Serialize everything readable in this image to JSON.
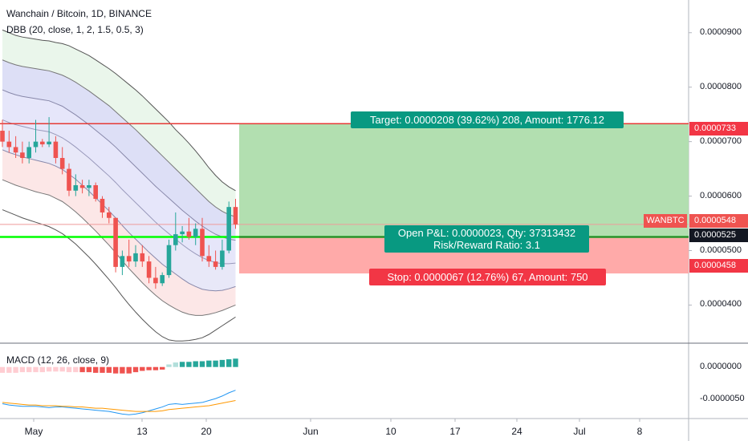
{
  "header": {
    "title": "Wanchain / Bitcoin, 1D, BINANCE",
    "indicator": "DBB (20, close, 1, 2, 1.5, 0.5, 3)"
  },
  "macd_legend": "MACD (12, 26, close, 9)",
  "position": {
    "target_label": "Target: 0.0000208 (39.62%) 208, Amount: 1776.12",
    "pnl_label": "Open P&L: 0.0000023, Qty: 37313432",
    "rr_label": "Risk/Reward Ratio: 3.1",
    "stop_label": "Stop: 0.0000067 (12.76%) 67, Amount: 750"
  },
  "price_axis": {
    "ticks": [
      "0.0000900",
      "0.0000800",
      "0.0000700",
      "0.0000600",
      "0.0000500",
      "0.0000400"
    ],
    "target_tag": "0.0000733",
    "last_price_tag": "0.0000548",
    "entry_tag": "0.0000525",
    "stop_tag": "0.0000458",
    "symbol_tag": "WANBTC"
  },
  "macd_axis": {
    "ticks": [
      "0.0000000",
      "-0.0000050"
    ]
  },
  "time_axis": {
    "labels": [
      "May",
      "13",
      "20",
      "Jun",
      "10",
      "17",
      "24",
      "Jul",
      "8"
    ]
  },
  "colors": {
    "up": "#26a69a",
    "down": "#ef5350",
    "target_zone": "#b2dfb0",
    "stop_zone": "#ffaaa9",
    "target_box": "#089981",
    "stop_box": "#f23645",
    "entry_line": "#00ff00"
  },
  "chart_data": {
    "type": "candlestick",
    "price_range": [
      3.3e-05,
      9.6e-05
    ],
    "candles": [
      {
        "o": 7.2e-05,
        "h": 7.4e-05,
        "l": 6.9e-05,
        "c": 7e-05
      },
      {
        "o": 7e-05,
        "h": 7.2e-05,
        "l": 6.8e-05,
        "c": 6.9e-05
      },
      {
        "o": 6.9e-05,
        "h": 7.1e-05,
        "l": 6.7e-05,
        "c": 6.8e-05
      },
      {
        "o": 6.8e-05,
        "h": 7e-05,
        "l": 6.6e-05,
        "c": 6.7e-05
      },
      {
        "o": 6.7e-05,
        "h": 7e-05,
        "l": 6.6e-05,
        "c": 6.9e-05
      },
      {
        "o": 6.9e-05,
        "h": 7.4e-05,
        "l": 6.8e-05,
        "c": 7e-05
      },
      {
        "o": 7e-05,
        "h": 7.05e-05,
        "l": 6.9e-05,
        "c": 6.95e-05
      },
      {
        "o": 6.95e-05,
        "h": 7.45e-05,
        "l": 6.9e-05,
        "c": 7e-05
      },
      {
        "o": 7e-05,
        "h": 7.1e-05,
        "l": 6.6e-05,
        "c": 6.7e-05
      },
      {
        "o": 6.7e-05,
        "h": 6.9e-05,
        "l": 6.4e-05,
        "c": 6.5e-05
      },
      {
        "o": 6.5e-05,
        "h": 6.6e-05,
        "l": 6e-05,
        "c": 6.1e-05
      },
      {
        "o": 6.1e-05,
        "h": 6.4e-05,
        "l": 6e-05,
        "c": 6.2e-05
      },
      {
        "o": 6.2e-05,
        "h": 6.3e-05,
        "l": 6.05e-05,
        "c": 6.15e-05
      },
      {
        "o": 6.15e-05,
        "h": 6.3e-05,
        "l": 6e-05,
        "c": 6.2e-05
      },
      {
        "o": 6.2e-05,
        "h": 6.25e-05,
        "l": 5.9e-05,
        "c": 5.95e-05
      },
      {
        "o": 5.95e-05,
        "h": 6e-05,
        "l": 5.6e-05,
        "c": 5.7e-05
      },
      {
        "o": 5.7e-05,
        "h": 5.8e-05,
        "l": 5.5e-05,
        "c": 5.6e-05
      },
      {
        "o": 5.6e-05,
        "h": 5.6e-05,
        "l": 4.6e-05,
        "c": 4.7e-05
      },
      {
        "o": 4.7e-05,
        "h": 5e-05,
        "l": 4.55e-05,
        "c": 4.9e-05
      },
      {
        "o": 4.9e-05,
        "h": 5.2e-05,
        "l": 4.7e-05,
        "c": 4.8e-05
      },
      {
        "o": 4.8e-05,
        "h": 5.1e-05,
        "l": 4.7e-05,
        "c": 4.95e-05
      },
      {
        "o": 4.95e-05,
        "h": 5.1e-05,
        "l": 4.7e-05,
        "c": 4.8e-05
      },
      {
        "o": 4.8e-05,
        "h": 4.9e-05,
        "l": 4.4e-05,
        "c": 4.5e-05
      },
      {
        "o": 4.5e-05,
        "h": 4.7e-05,
        "l": 4.3e-05,
        "c": 4.4e-05
      },
      {
        "o": 4.4e-05,
        "h": 4.6e-05,
        "l": 4.35e-05,
        "c": 4.55e-05
      },
      {
        "o": 4.55e-05,
        "h": 5.2e-05,
        "l": 4.5e-05,
        "c": 5.1e-05
      },
      {
        "o": 5.1e-05,
        "h": 5.7e-05,
        "l": 5e-05,
        "c": 5.3e-05
      },
      {
        "o": 5.3e-05,
        "h": 5.45e-05,
        "l": 5.15e-05,
        "c": 5.35e-05
      },
      {
        "o": 5.35e-05,
        "h": 5.6e-05,
        "l": 5.2e-05,
        "c": 5.25e-05
      },
      {
        "o": 5.25e-05,
        "h": 5.5e-05,
        "l": 5.1e-05,
        "c": 5.4e-05
      },
      {
        "o": 5.4e-05,
        "h": 5.6e-05,
        "l": 4.8e-05,
        "c": 4.9e-05
      },
      {
        "o": 4.9e-05,
        "h": 5.1e-05,
        "l": 4.7e-05,
        "c": 4.8e-05
      },
      {
        "o": 4.8e-05,
        "h": 5e-05,
        "l": 4.65e-05,
        "c": 4.7e-05
      },
      {
        "o": 4.7e-05,
        "h": 5.2e-05,
        "l": 4.65e-05,
        "c": 5e-05
      },
      {
        "o": 5e-05,
        "h": 5.9e-05,
        "l": 4.95e-05,
        "c": 5.8e-05
      },
      {
        "o": 5.8e-05,
        "h": 5.95e-05,
        "l": 5.4e-05,
        "c": 5.48e-05
      }
    ],
    "bands": {
      "upper3": [
        9.05e-05,
        9e-05,
        8.95e-05,
        8.92e-05,
        8.9e-05,
        8.88e-05,
        8.86e-05,
        8.85e-05,
        8.82e-05,
        8.8e-05,
        8.76e-05,
        8.7e-05,
        8.64e-05,
        8.58e-05,
        8.5e-05,
        8.42e-05,
        8.34e-05,
        8.25e-05,
        8.15e-05,
        8.05e-05,
        7.95e-05,
        7.84e-05,
        7.72e-05,
        7.6e-05,
        7.48e-05,
        7.36e-05,
        7.22e-05,
        7.1e-05,
        6.97e-05,
        6.83e-05,
        6.68e-05,
        6.52e-05,
        6.38e-05,
        6.26e-05,
        6.17e-05,
        6.1e-05
      ],
      "upper2": [
        8.5e-05,
        8.45e-05,
        8.41e-05,
        8.38e-05,
        8.36e-05,
        8.34e-05,
        8.32e-05,
        8.3e-05,
        8.26e-05,
        8.22e-05,
        8.16e-05,
        8.09e-05,
        8.01e-05,
        7.93e-05,
        7.84e-05,
        7.75e-05,
        7.66e-05,
        7.55e-05,
        7.44e-05,
        7.33e-05,
        7.22e-05,
        7.1e-05,
        6.98e-05,
        6.86e-05,
        6.74e-05,
        6.62e-05,
        6.5e-05,
        6.38e-05,
        6.26e-05,
        6.14e-05,
        6.02e-05,
        5.9e-05,
        5.8e-05,
        5.72e-05,
        5.66e-05,
        5.62e-05
      ],
      "upper1": [
        7.95e-05,
        7.9e-05,
        7.86e-05,
        7.83e-05,
        7.81e-05,
        7.79e-05,
        7.77e-05,
        7.75e-05,
        7.7e-05,
        7.65e-05,
        7.57e-05,
        7.49e-05,
        7.4e-05,
        7.31e-05,
        7.21e-05,
        7.11e-05,
        7.01e-05,
        6.9e-05,
        6.78e-05,
        6.66e-05,
        6.54e-05,
        6.42e-05,
        6.3e-05,
        6.18e-05,
        6.07e-05,
        5.96e-05,
        5.85e-05,
        5.74e-05,
        5.64e-05,
        5.54e-05,
        5.45e-05,
        5.37e-05,
        5.3e-05,
        5.25e-05,
        5.21e-05,
        5.19e-05
      ],
      "middle": [
        7.4e-05,
        7.35e-05,
        7.31e-05,
        7.28e-05,
        7.25e-05,
        7.22e-05,
        7.2e-05,
        7.18e-05,
        7.13e-05,
        7.07e-05,
        6.99e-05,
        6.9e-05,
        6.8e-05,
        6.7e-05,
        6.59e-05,
        6.48e-05,
        6.37e-05,
        6.25e-05,
        6.12e-05,
        6e-05,
        5.88e-05,
        5.76e-05,
        5.64e-05,
        5.52e-05,
        5.41e-05,
        5.31e-05,
        5.21e-05,
        5.11e-05,
        5.02e-05,
        4.94e-05,
        4.87e-05,
        4.82e-05,
        4.78e-05,
        4.76e-05,
        4.76e-05,
        4.77e-05
      ],
      "lower1": [
        6.85e-05,
        6.8e-05,
        6.76e-05,
        6.72e-05,
        6.69e-05,
        6.66e-05,
        6.63e-05,
        6.6e-05,
        6.55e-05,
        6.49e-05,
        6.4e-05,
        6.31e-05,
        6.2e-05,
        6.09e-05,
        5.97e-05,
        5.85e-05,
        5.73e-05,
        5.6e-05,
        5.46e-05,
        5.33e-05,
        5.21e-05,
        5.09e-05,
        4.97e-05,
        4.86e-05,
        4.75e-05,
        4.66e-05,
        4.57e-05,
        4.48e-05,
        4.4e-05,
        4.34e-05,
        4.29e-05,
        4.27e-05,
        4.26e-05,
        4.27e-05,
        4.3e-05,
        4.34e-05
      ],
      "lower2": [
        6.3e-05,
        6.25e-05,
        6.2e-05,
        6.16e-05,
        6.12e-05,
        6.08e-05,
        6.05e-05,
        6.02e-05,
        5.96e-05,
        5.9e-05,
        5.81e-05,
        5.71e-05,
        5.6e-05,
        5.48e-05,
        5.36e-05,
        5.23e-05,
        5.1e-05,
        4.96e-05,
        4.81e-05,
        4.67e-05,
        4.54e-05,
        4.41e-05,
        4.29e-05,
        4.18e-05,
        4.08e-05,
        4e-05,
        3.93e-05,
        3.87e-05,
        3.83e-05,
        3.81e-05,
        3.81e-05,
        3.83e-05,
        3.86e-05,
        3.9e-05,
        3.95e-05,
        4e-05
      ],
      "lower3": [
        5.75e-05,
        5.7e-05,
        5.65e-05,
        5.6e-05,
        5.56e-05,
        5.52e-05,
        5.48e-05,
        5.44e-05,
        5.38e-05,
        5.31e-05,
        5.22e-05,
        5.12e-05,
        5e-05,
        4.88e-05,
        4.75e-05,
        4.61e-05,
        4.47e-05,
        4.32e-05,
        4.16e-05,
        4.01e-05,
        3.87e-05,
        3.74e-05,
        3.62e-05,
        3.51e-05,
        3.42e-05,
        3.36e-05,
        3.34e-05,
        3.34e-05,
        3.35e-05,
        3.37e-05,
        3.4e-05,
        3.46e-05,
        3.54e-05,
        3.62e-05,
        3.7e-05,
        3.78e-05
      ]
    },
    "position_tool": {
      "entry": 5.25e-05,
      "target": 7.33e-05,
      "stop": 4.58e-05
    },
    "macd": {
      "range": [
        -7.5e-06,
        3.2e-06
      ],
      "histogram": [
        -9e-07,
        -9e-07,
        -9e-07,
        -8e-07,
        -8e-07,
        -8e-07,
        -8e-07,
        -7e-07,
        -7e-07,
        -7e-07,
        -8e-07,
        -8e-07,
        -8e-07,
        -8e-07,
        -9e-07,
        -9e-07,
        -9e-07,
        -1e-06,
        -1e-06,
        -1e-06,
        -8e-07,
        -6e-07,
        -5e-07,
        -5e-07,
        -4e-07,
        4e-07,
        7e-07,
        8e-07,
        8e-07,
        9e-07,
        9e-07,
        1e-06,
        1e-06,
        1.1e-06,
        1.2e-06,
        1.3e-06
      ],
      "macd_line": [
        -5.7e-06,
        -5.9e-06,
        -6e-06,
        -6.1e-06,
        -6.1e-06,
        -6.1e-06,
        -6.2e-06,
        -6.3e-06,
        -6.2e-06,
        -6.2e-06,
        -6.3e-06,
        -6.4e-06,
        -6.5e-06,
        -6.6e-06,
        -6.7e-06,
        -6.8e-06,
        -6.9e-06,
        -7.1e-06,
        -7.3e-06,
        -7.4e-06,
        -7.3e-06,
        -7.1e-06,
        -6.8e-06,
        -6.5e-06,
        -6.2e-06,
        -5.8e-06,
        -5.7e-06,
        -5.8e-06,
        -5.7e-06,
        -5.6e-06,
        -5.5e-06,
        -5.2e-06,
        -4.9e-06,
        -4.5e-06,
        -4e-06,
        -3.6e-06
      ],
      "signal_line": [
        -5.5e-06,
        -5.6e-06,
        -5.7e-06,
        -5.8e-06,
        -5.9e-06,
        -5.9e-06,
        -6e-06,
        -6e-06,
        -6e-06,
        -6.1e-06,
        -6.1e-06,
        -6.2e-06,
        -6.2e-06,
        -6.3e-06,
        -6.4e-06,
        -6.4e-06,
        -6.5e-06,
        -6.6e-06,
        -6.7e-06,
        -6.8e-06,
        -6.9e-06,
        -6.9e-06,
        -6.9e-06,
        -6.9e-06,
        -6.8e-06,
        -6.6e-06,
        -6.5e-06,
        -6.4e-06,
        -6.3e-06,
        -6.2e-06,
        -6.1e-06,
        -6e-06,
        -5.8e-06,
        -5.6e-06,
        -5.4e-06,
        -5.2e-06
      ]
    }
  }
}
